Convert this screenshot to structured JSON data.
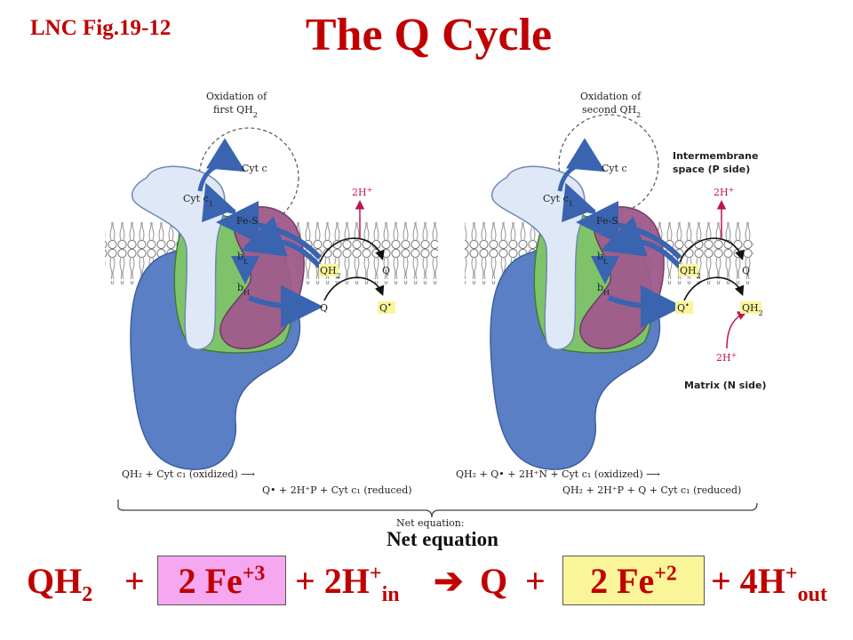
{
  "header": {
    "figure_label": "LNC Fig.19-12",
    "title": "The Q Cycle"
  },
  "left_panel": {
    "caption_line1": "Oxidation of",
    "caption_line2": "first QH",
    "caption_sub": "2",
    "cyt_c": "Cyt c",
    "cyt_c1": "Cyt c",
    "cyt_c1_sub": "1",
    "fe_s": "Fe-S",
    "b_l": "b",
    "b_l_sub": "L",
    "b_h": "b",
    "b_h_sub": "H",
    "proton_out": "2H",
    "qh2": "QH",
    "qh2_sub": "2",
    "q_top": "Q",
    "q_bottom": "Q",
    "q_radical": "Q",
    "equation_line1": "QH₂ + Cyt c₁ (oxidized) ⟶",
    "equation_line2": "Q• + 2H⁺P + Cyt c₁ (reduced)"
  },
  "right_panel": {
    "caption_line1": "Oxidation of",
    "caption_line2": "second QH",
    "caption_sub": "2",
    "cyt_c": "Cyt c",
    "cyt_c1": "Cyt c",
    "cyt_c1_sub": "1",
    "fe_s": "Fe-S",
    "b_l": "b",
    "b_l_sub": "L",
    "b_h": "b",
    "b_h_sub": "H",
    "proton_out": "2H",
    "proton_in": "2H",
    "qh2": "QH",
    "qh2_sub": "2",
    "q_top": "Q",
    "q_radical": "Q",
    "qh2_product": "QH",
    "qh2_product_sub": "2",
    "intermembrane_line1": "Intermembrane",
    "intermembrane_line2": "space (P side)",
    "matrix": "Matrix (N side)",
    "equation_line1": "QH₂ + Q• + 2H⁺N + Cyt c₁ (oxidized) ⟶",
    "equation_line2": "QH₂ + 2H⁺P + Q + Cyt c₁ (reduced)"
  },
  "net": {
    "bracket_label": "Net equation:",
    "label": "Net equation",
    "qh2": "QH",
    "qh2_sub": "2",
    "plus1": "+",
    "fe3": "2 Fe",
    "fe3_sup": "+3",
    "h_in": "+ 2H",
    "h_in_sup": "+",
    "h_in_sub": "in",
    "arrow": "➔",
    "q": "Q",
    "plus2": "+",
    "fe2": "2 Fe",
    "fe2_sup": "+2",
    "h_out": "+ 4H",
    "h_out_sup": "+",
    "h_out_sub": "out"
  },
  "colors": {
    "title": "#c00000",
    "fe3_box": "#f5a8f0",
    "fe2_box": "#fbf59a",
    "protein_blue": "#5a7fc4",
    "protein_light": "#dfe8f6",
    "protein_green": "#7ec36a",
    "protein_purple": "#a05a8c",
    "arrow_blue": "#3a64b0",
    "proton_red": "#c0144e"
  }
}
